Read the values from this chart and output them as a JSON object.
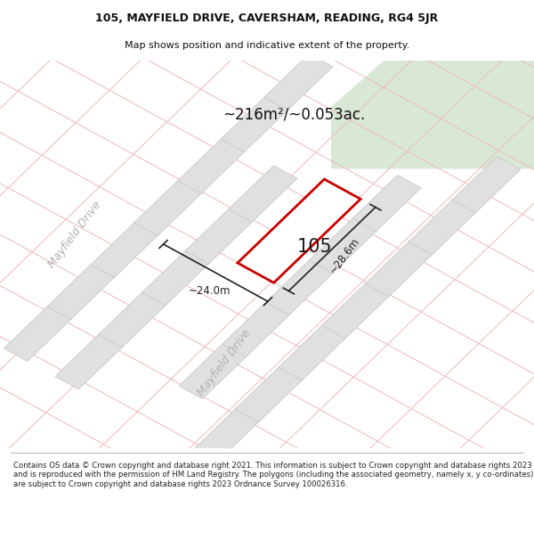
{
  "title_line1": "105, MAYFIELD DRIVE, CAVERSHAM, READING, RG4 5JR",
  "title_line2": "Map shows position and indicative extent of the property.",
  "area_text": "~216m²/~0.053ac.",
  "label_105": "105",
  "dim_height": "~28.6m",
  "dim_width": "~24.0m",
  "road_label1": "Mayfield Drive",
  "road_label2": "Mayfield Drive",
  "footer": "Contains OS data © Crown copyright and database right 2021. This information is subject to Crown copyright and database rights 2023 and is reproduced with the permission of HM Land Registry. The polygons (including the associated geometry, namely x, y co-ordinates) are subject to Crown copyright and database rights 2023 Ordnance Survey 100026316.",
  "map_bg": "#f2f2f2",
  "green_area_color": "#d8e8d5",
  "plot_border": "#cc0000",
  "building_color": "#e0e0e0",
  "building_border": "#c8c8c8",
  "grid_color": "#f0b8b8",
  "dim_color": "#222222",
  "road_text_color": "#b0b0b0",
  "title_color": "#111111",
  "footer_color": "#222222",
  "white": "#ffffff"
}
